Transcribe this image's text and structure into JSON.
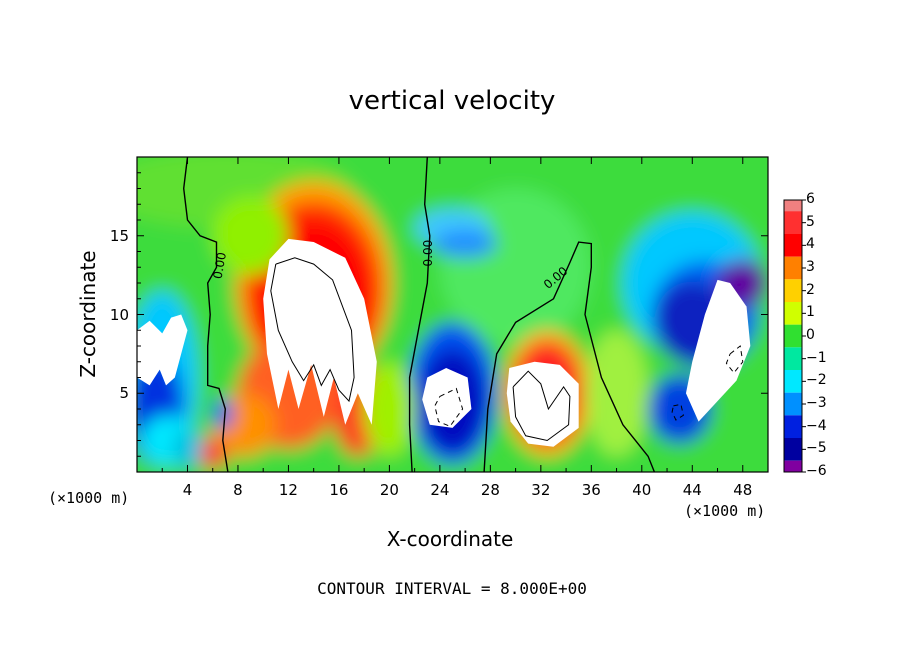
{
  "chart_data": {
    "type": "heatmap",
    "title": "vertical velocity",
    "xlabel": "X-coordinate",
    "ylabel": "Z-coordinate",
    "x_unit_label": "(×1000 m)",
    "xlim": [
      0,
      50
    ],
    "ylim": [
      0,
      20
    ],
    "x_ticks": [
      "4",
      "8",
      "12",
      "16",
      "20",
      "24",
      "28",
      "32",
      "36",
      "40",
      "44",
      "48"
    ],
    "x_tick_values": [
      4,
      8,
      12,
      16,
      20,
      24,
      28,
      32,
      36,
      40,
      44,
      48
    ],
    "y_ticks": [
      "5",
      "10",
      "15"
    ],
    "y_tick_values": [
      5,
      10,
      15
    ],
    "colorbar": {
      "range": [
        -6,
        6
      ],
      "labels": [
        "6",
        "5",
        "4",
        "3",
        "2",
        "1",
        "0",
        "−1",
        "−2",
        "−3",
        "−4",
        "−5",
        "−6"
      ],
      "colors": [
        "#f08080",
        "#ff3030",
        "#ff0000",
        "#ff8000",
        "#ffd000",
        "#d0ff00",
        "#30e030",
        "#00e8a0",
        "#00e8ff",
        "#0090ff",
        "#0020e0",
        "#0000a0",
        "#8000a0"
      ]
    },
    "contour_labels": [
      "0.00",
      "0.00",
      "0.00"
    ],
    "contour_interval_text": "CONTOUR INTERVAL = 8.000E+00",
    "features": [
      {
        "kind": "updraft",
        "x": 14,
        "z": 10,
        "value": 8
      },
      {
        "kind": "updraft",
        "x": 32.5,
        "z": 4.5,
        "value": 8
      },
      {
        "kind": "downdraft",
        "x": 25,
        "z": 5,
        "value": -8
      },
      {
        "kind": "downdraft",
        "x": 45.5,
        "z": 9,
        "value": -8
      },
      {
        "kind": "downdraft",
        "x": 2,
        "z": 7,
        "value": -7
      }
    ]
  }
}
